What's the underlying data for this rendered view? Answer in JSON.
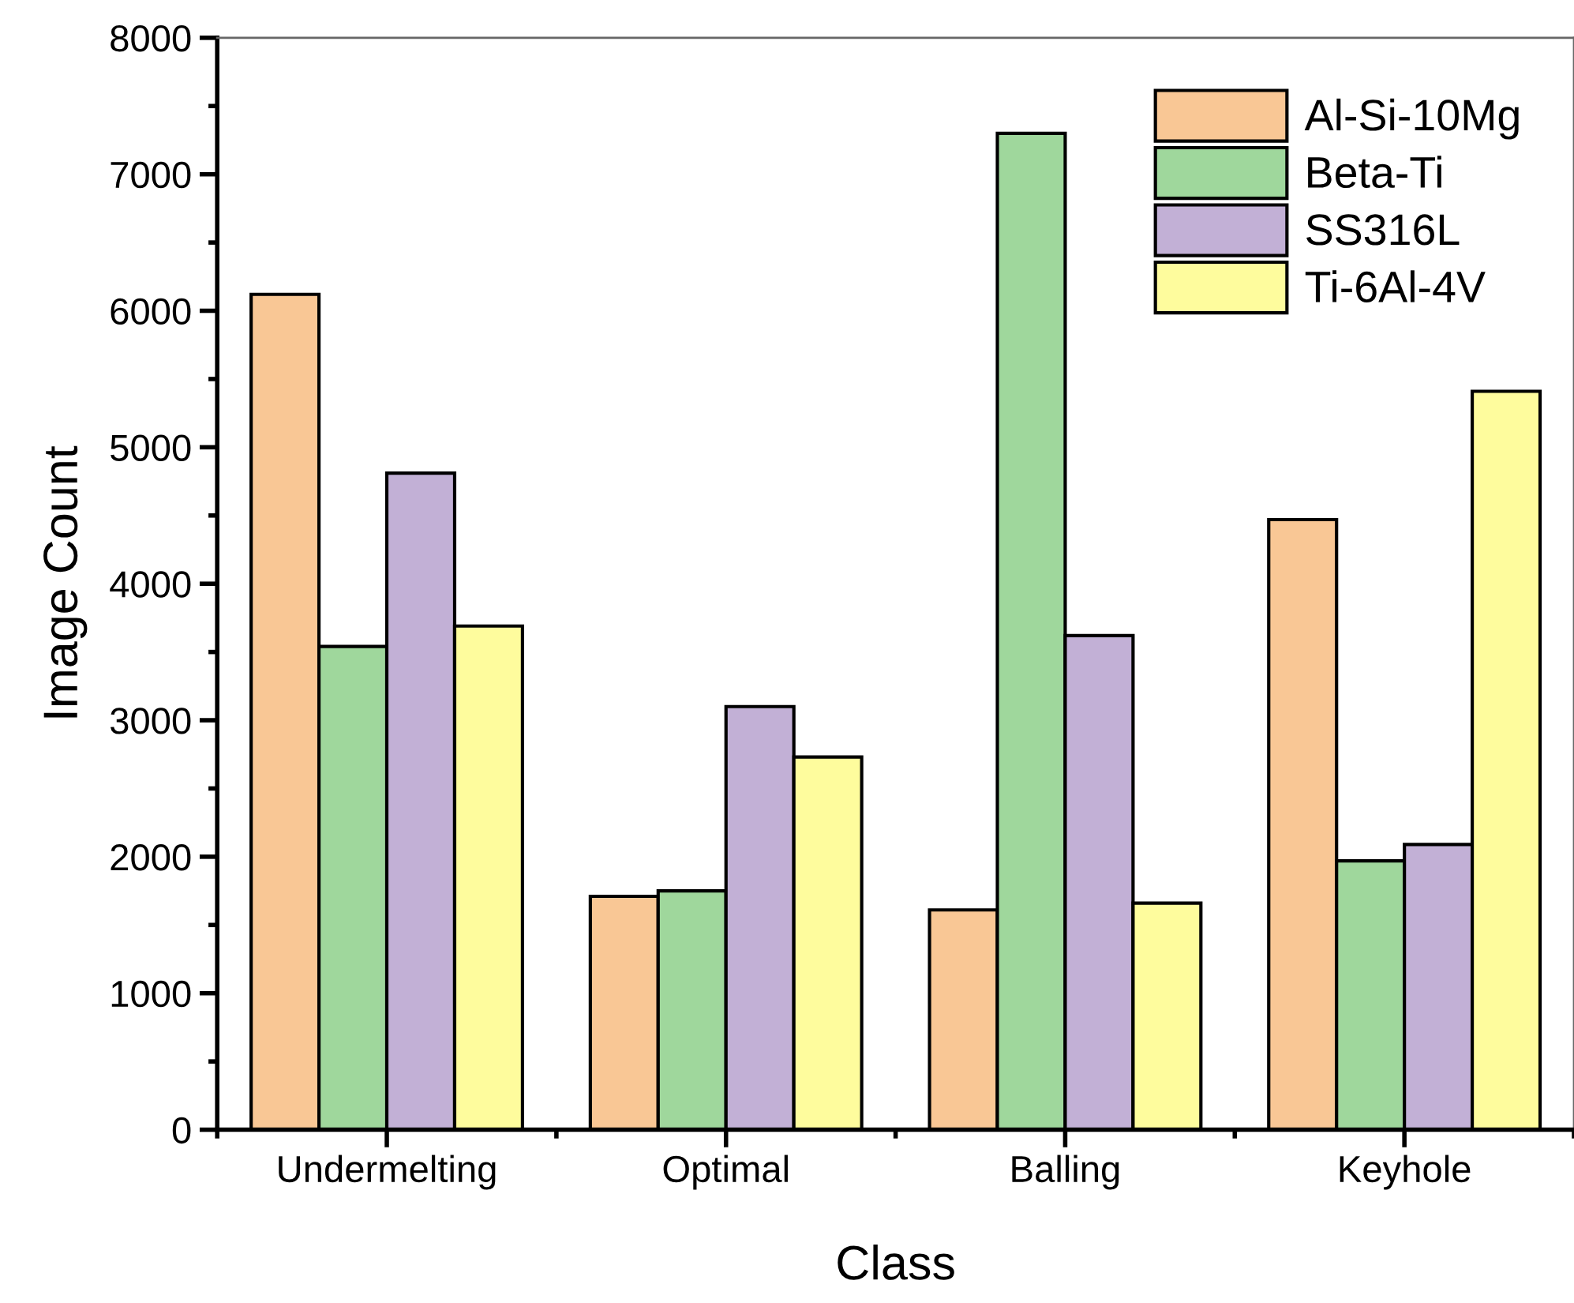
{
  "chart_data": {
    "type": "bar",
    "xlabel": "Class",
    "ylabel": "Image Count",
    "categories": [
      "Undermelting",
      "Optimal",
      "Balling",
      "Keyhole"
    ],
    "series": [
      {
        "name": "Al-Si-10Mg",
        "color": "#f9c795",
        "values": [
          6120,
          1710,
          1610,
          4470
        ]
      },
      {
        "name": "Beta-Ti",
        "color": "#9fd79c",
        "values": [
          3540,
          1750,
          7300,
          1970
        ]
      },
      {
        "name": "SS316L",
        "color": "#c2b0d6",
        "values": [
          4810,
          3100,
          3620,
          2090
        ]
      },
      {
        "name": "Ti-6Al-4V",
        "color": "#fefc9d",
        "values": [
          3690,
          2730,
          1660,
          5410
        ]
      }
    ],
    "ylim": [
      0,
      8000
    ],
    "yticks": [
      0,
      1000,
      2000,
      3000,
      4000,
      5000,
      6000,
      7000,
      8000
    ],
    "grid": false,
    "legend": "top right"
  }
}
